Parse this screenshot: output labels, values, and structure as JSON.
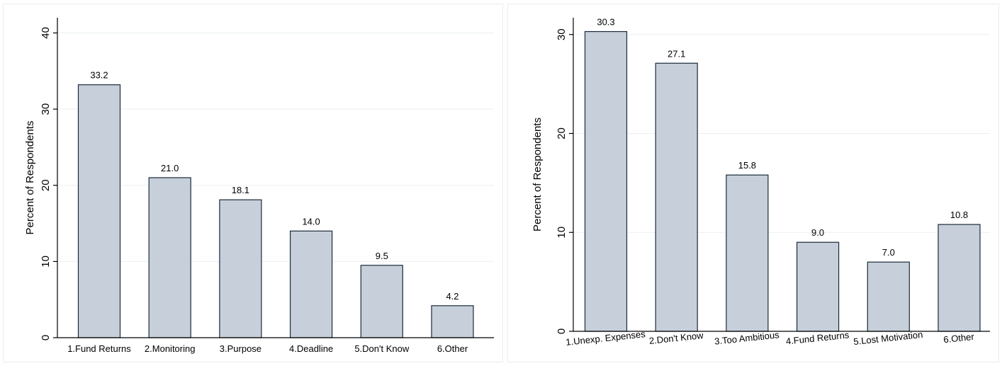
{
  "chart_data": [
    {
      "type": "bar",
      "categories": [
        "1.Fund Returns",
        "2.Monitoring",
        "3.Purpose",
        "4.Deadline",
        "5.Don't Know",
        "6.Other"
      ],
      "values": [
        33.2,
        21.0,
        18.1,
        14.0,
        9.5,
        4.2
      ],
      "value_labels": [
        "33.2",
        "21.0",
        "18.1",
        "14.0",
        "9.5",
        "4.2"
      ],
      "title": "",
      "xlabel": "",
      "ylabel": "Percent of Respondents",
      "ylim": [
        0,
        42
      ],
      "yticks": [
        0,
        10,
        20,
        30,
        40
      ],
      "ytick_labels": [
        "0",
        "10",
        "20",
        "30",
        "40"
      ],
      "grid": true,
      "bar_color": "#c7d0da",
      "bar_outline": "#1a2a3a",
      "category_label_rotation": 0
    },
    {
      "type": "bar",
      "categories": [
        "1.Unexp. Expenses",
        "2.Don't Know",
        "3.Too Ambitious",
        "4.Fund Returns",
        "5.Lost Motivation",
        "6.Other"
      ],
      "values": [
        30.3,
        27.1,
        15.8,
        9.0,
        7.0,
        10.8
      ],
      "value_labels": [
        "30.3",
        "27.1",
        "15.8",
        "9.0",
        "7.0",
        "10.8"
      ],
      "title": "",
      "xlabel": "",
      "ylabel": "Percent of Respondents",
      "ylim": [
        0,
        31.7
      ],
      "yticks": [
        0,
        10,
        20,
        30
      ],
      "ytick_labels": [
        "0",
        "10",
        "20",
        "30"
      ],
      "grid": true,
      "bar_color": "#c7d0da",
      "bar_outline": "#1a2a3a",
      "category_label_rotation": -6
    }
  ]
}
